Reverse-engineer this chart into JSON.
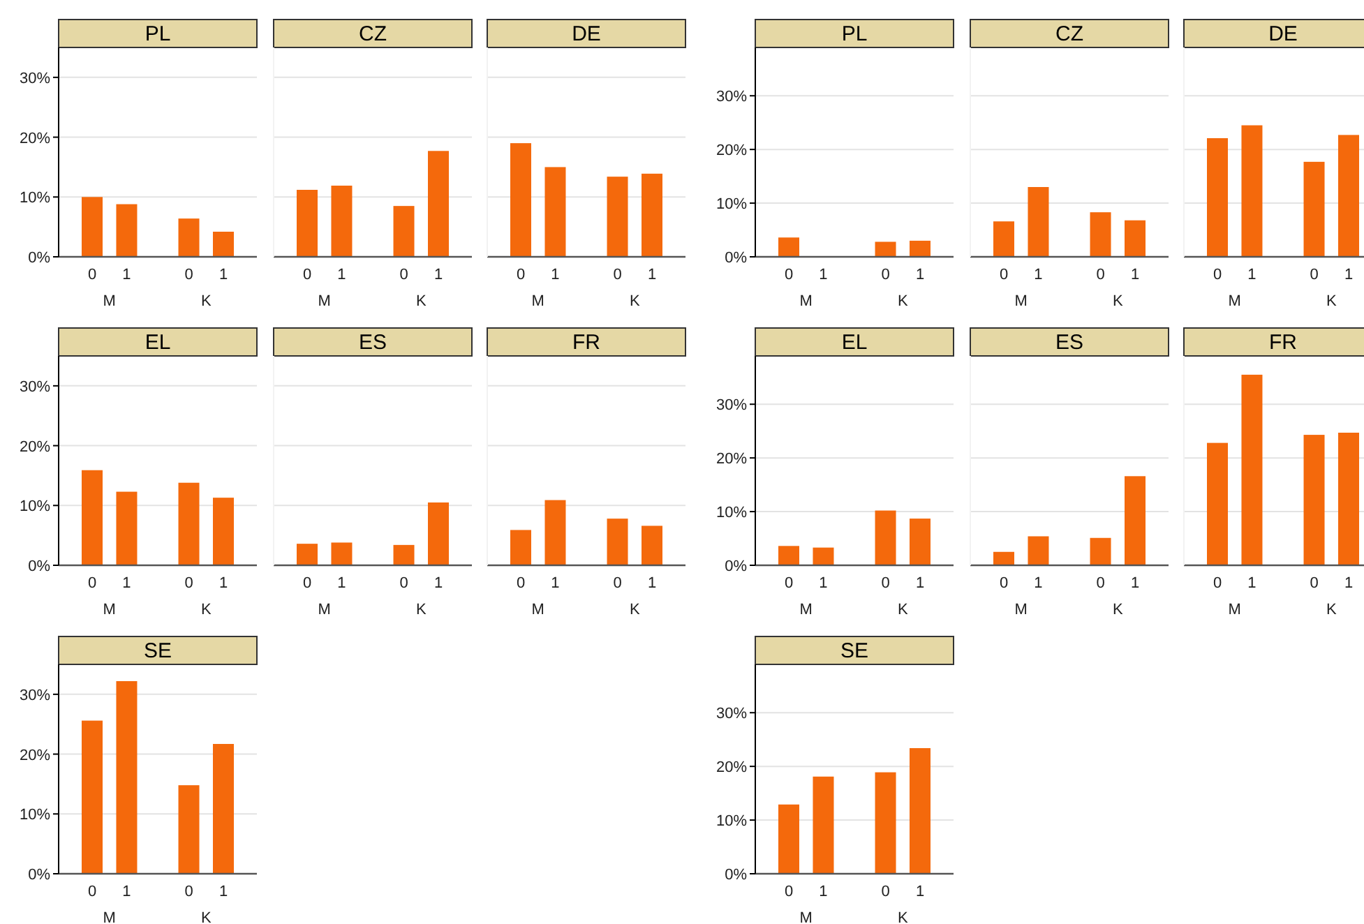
{
  "chart_data": [
    {
      "type": "bar",
      "title": "PL",
      "categories": [
        "0",
        "1",
        "0",
        "1"
      ],
      "annotations": [
        "M",
        "K"
      ],
      "values": [
        10.0,
        8.8,
        6.4,
        4.2
      ],
      "color": "#f4690c",
      "ylim": [
        0,
        35
      ],
      "yticks": [
        {
          "value": 0,
          "label": "0%"
        },
        {
          "value": 10,
          "label": "10%"
        },
        {
          "value": 20,
          "label": "20%"
        },
        {
          "value": 30,
          "label": "30%"
        }
      ],
      "grid": "y"
    },
    {
      "type": "bar",
      "title": "CZ",
      "categories": [
        "0",
        "1",
        "0",
        "1"
      ],
      "annotations": [
        "M",
        "K"
      ],
      "values": [
        11.2,
        11.9,
        8.5,
        17.7
      ],
      "color": "#f4690c",
      "ylim": [
        0,
        35
      ],
      "yticks": [
        0,
        10,
        20,
        30
      ],
      "grid": "y",
      "tick_labels": "x"
    },
    {
      "type": "bar",
      "title": "DE",
      "categories": [
        "0",
        "1",
        "0",
        "1"
      ],
      "annotations": [
        "M",
        "K"
      ],
      "values": [
        19.0,
        15.0,
        13.4,
        13.9
      ],
      "color": "#f4690c",
      "ylim": [
        0,
        35
      ],
      "yticks": [
        0,
        10,
        20,
        30
      ],
      "grid": "y",
      "tick_labels": "x"
    },
    {
      "type": "bar",
      "title": "PL",
      "categories": [
        "0",
        "1",
        "0",
        "1"
      ],
      "annotations": [
        "M",
        "K"
      ],
      "values": [
        3.6,
        null,
        2.8,
        3.0
      ],
      "color": "#f4690c",
      "ylim": [
        0,
        39
      ],
      "yticks": [
        {
          "value": 0,
          "label": "0%"
        },
        {
          "value": 10,
          "label": "10%"
        },
        {
          "value": 20,
          "label": "20%"
        },
        {
          "value": 30,
          "label": "30%"
        }
      ],
      "grid": "y"
    },
    {
      "type": "bar",
      "title": "CZ",
      "categories": [
        "0",
        "1",
        "0",
        "1"
      ],
      "annotations": [
        "M",
        "K"
      ],
      "values": [
        6.6,
        13.0,
        8.3,
        6.8
      ],
      "color": "#f4690c",
      "ylim": [
        0,
        39
      ],
      "yticks": [
        0,
        10,
        20,
        30
      ],
      "grid": "y",
      "tick_labels": "x"
    },
    {
      "type": "bar",
      "title": "DE",
      "categories": [
        "0",
        "1",
        "0",
        "1"
      ],
      "annotations": [
        "M",
        "K"
      ],
      "values": [
        22.1,
        24.5,
        17.7,
        22.7
      ],
      "color": "#f4690c",
      "ylim": [
        0,
        39
      ],
      "yticks": [
        0,
        10,
        20,
        30
      ],
      "grid": "y",
      "tick_labels": "x"
    },
    {
      "type": "bar",
      "title": "EL",
      "categories": [
        "0",
        "1",
        "0",
        "1"
      ],
      "annotations": [
        "M",
        "K"
      ],
      "values": [
        15.9,
        12.3,
        13.8,
        11.3
      ],
      "color": "#f4690c",
      "ylim": [
        0,
        35
      ],
      "yticks": [
        {
          "value": 0,
          "label": "0%"
        },
        {
          "value": 10,
          "label": "10%"
        },
        {
          "value": 20,
          "label": "20%"
        },
        {
          "value": 30,
          "label": "30%"
        }
      ],
      "grid": "y"
    },
    {
      "type": "bar",
      "title": "ES",
      "categories": [
        "0",
        "1",
        "0",
        "1"
      ],
      "annotations": [
        "M",
        "K"
      ],
      "values": [
        3.6,
        3.8,
        3.4,
        10.5
      ],
      "color": "#f4690c",
      "ylim": [
        0,
        35
      ],
      "yticks": [
        0,
        10,
        20,
        30
      ],
      "grid": "y",
      "tick_labels": "x"
    },
    {
      "type": "bar",
      "title": "FR",
      "categories": [
        "0",
        "1",
        "0",
        "1"
      ],
      "annotations": [
        "M",
        "K"
      ],
      "values": [
        5.9,
        10.9,
        7.8,
        6.6
      ],
      "color": "#f4690c",
      "ylim": [
        0,
        35
      ],
      "yticks": [
        0,
        10,
        20,
        30
      ],
      "grid": "y",
      "tick_labels": "x"
    },
    {
      "type": "bar",
      "title": "EL",
      "categories": [
        "0",
        "1",
        "0",
        "1"
      ],
      "annotations": [
        "M",
        "K"
      ],
      "values": [
        3.6,
        3.3,
        10.2,
        8.7
      ],
      "color": "#f4690c",
      "ylim": [
        0,
        39
      ],
      "yticks": [
        {
          "value": 0,
          "label": "0%"
        },
        {
          "value": 10,
          "label": "10%"
        },
        {
          "value": 20,
          "label": "20%"
        },
        {
          "value": 30,
          "label": "30%"
        }
      ],
      "grid": "y"
    },
    {
      "type": "bar",
      "title": "ES",
      "categories": [
        "0",
        "1",
        "0",
        "1"
      ],
      "annotations": [
        "M",
        "K"
      ],
      "values": [
        2.5,
        5.4,
        5.1,
        16.6
      ],
      "color": "#f4690c",
      "ylim": [
        0,
        39
      ],
      "yticks": [
        0,
        10,
        20,
        30
      ],
      "grid": "y",
      "tick_labels": "x"
    },
    {
      "type": "bar",
      "title": "FR",
      "categories": [
        "0",
        "1",
        "0",
        "1"
      ],
      "annotations": [
        "M",
        "K"
      ],
      "values": [
        22.8,
        35.5,
        24.3,
        24.7
      ],
      "color": "#f4690c",
      "ylim": [
        0,
        39
      ],
      "yticks": [
        0,
        10,
        20,
        30
      ],
      "grid": "y",
      "tick_labels": "x"
    },
    {
      "type": "bar",
      "title": "SE",
      "categories": [
        "0",
        "1",
        "0",
        "1"
      ],
      "annotations": [
        "M",
        "K"
      ],
      "values": [
        25.6,
        32.2,
        14.8,
        21.7
      ],
      "color": "#f4690c",
      "ylim": [
        0,
        35
      ],
      "yticks": [
        {
          "value": 0,
          "label": "0%"
        },
        {
          "value": 10,
          "label": "10%"
        },
        {
          "value": 20,
          "label": "20%"
        },
        {
          "value": 30,
          "label": "30%"
        }
      ],
      "grid": "y"
    },
    {
      "type": "bar",
      "title": "SE",
      "categories": [
        "0",
        "1",
        "0",
        "1"
      ],
      "annotations": [
        "M",
        "K"
      ],
      "values": [
        12.9,
        18.1,
        18.9,
        23.4
      ],
      "color": "#f4690c",
      "ylim": [
        0,
        39
      ],
      "yticks": [
        {
          "value": 0,
          "label": "0%"
        },
        {
          "value": 10,
          "label": "10%"
        },
        {
          "value": 20,
          "label": "20%"
        },
        {
          "value": 30,
          "label": "30%"
        }
      ],
      "grid": "y"
    }
  ]
}
